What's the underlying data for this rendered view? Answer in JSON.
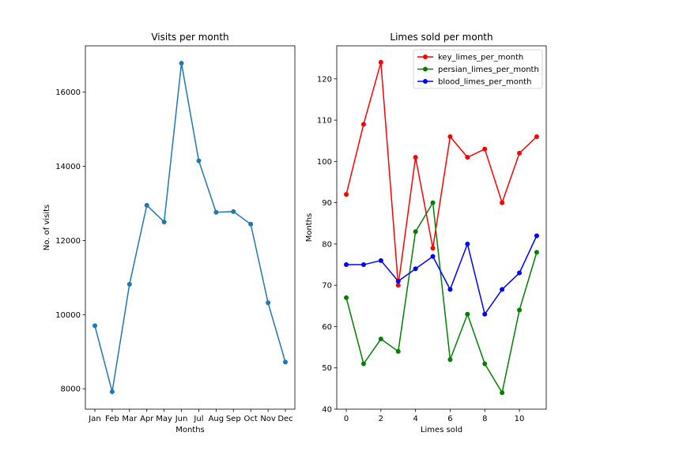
{
  "colors": {
    "left_line": "#1f77b4",
    "key": "#ff0000",
    "persian": "#008000",
    "blood": "#0000ff",
    "legend_border": "#cccccc"
  },
  "chart_data": [
    {
      "type": "line",
      "title": "Visits per month",
      "xlabel": "Months",
      "ylabel": "No. of visits",
      "categories": [
        "Jan",
        "Feb",
        "Mar",
        "Apr",
        "May",
        "Jun",
        "Jul",
        "Aug",
        "Sep",
        "Oct",
        "Nov",
        "Dec"
      ],
      "series": [
        {
          "values": [
            9700,
            7920,
            10820,
            12950,
            12500,
            16780,
            14150,
            12760,
            12780,
            12440,
            10320,
            8720
          ]
        }
      ],
      "ylim": [
        7450,
        17250
      ],
      "yticks": [
        8000,
        10000,
        12000,
        14000,
        16000
      ],
      "grid": false
    },
    {
      "type": "line",
      "title": "Limes sold per month",
      "xlabel": "Limes sold",
      "ylabel": "Months",
      "x": [
        0,
        1,
        2,
        3,
        4,
        5,
        6,
        7,
        8,
        9,
        10,
        11
      ],
      "xlim": [
        -0.55,
        11.55
      ],
      "ylim": [
        40,
        128
      ],
      "xticks": [
        0,
        2,
        4,
        6,
        8,
        10
      ],
      "yticks": [
        40,
        50,
        60,
        70,
        80,
        90,
        100,
        110,
        120
      ],
      "legend": "top-right",
      "grid": false,
      "series": [
        {
          "name": "key_limes_per_month",
          "values": [
            92,
            109,
            124,
            70,
            101,
            79,
            106,
            101,
            103,
            90,
            102,
            106
          ]
        },
        {
          "name": "persian_limes_per_month",
          "values": [
            67,
            51,
            57,
            54,
            83,
            90,
            52,
            63,
            51,
            44,
            64,
            78
          ]
        },
        {
          "name": "blood_limes_per_month",
          "values": [
            75,
            75,
            76,
            71,
            74,
            77,
            69,
            80,
            63,
            69,
            73,
            82
          ]
        }
      ]
    }
  ]
}
